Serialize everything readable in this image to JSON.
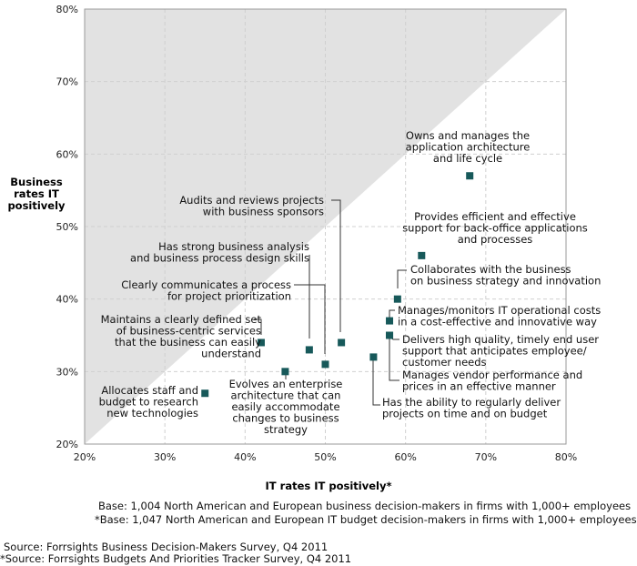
{
  "chart_data": {
    "type": "scatter",
    "title": "",
    "xlabel": "IT rates IT positively*",
    "ylabel": [
      "Business",
      "rates IT",
      "positively"
    ],
    "xlim": [
      20,
      80
    ],
    "ylim": [
      20,
      80
    ],
    "x_ticks": [
      20,
      30,
      40,
      50,
      60,
      70,
      80
    ],
    "y_ticks": [
      20,
      30,
      40,
      50,
      60,
      70,
      80
    ],
    "tick_suffix": "%",
    "grid": true,
    "shaded_region": "upper-left triangle above the diagonal y = x",
    "colors": {
      "marker": "#17595a",
      "shade": "#e2e2e2",
      "grid": "#d0d0d0",
      "leader": "#333333"
    },
    "points": [
      {
        "label": [
          "Owns and manages the",
          "application architecture",
          "and life cycle"
        ],
        "x": 68,
        "y": 57
      },
      {
        "label": [
          "Audits and reviews projects",
          "with business sponsors"
        ],
        "x": 52,
        "y": 34
      },
      {
        "label": [
          "Provides efficient and effective",
          "support for back-office applications",
          "and processes"
        ],
        "x": 62,
        "y": 46
      },
      {
        "label": [
          "Has strong business analysis",
          "and business process design skills"
        ],
        "x": 48,
        "y": 33
      },
      {
        "label": [
          "Collaborates with the business",
          "on business strategy and innovation"
        ],
        "x": 59,
        "y": 40
      },
      {
        "label": [
          "Clearly communicates a process",
          "for project prioritization"
        ],
        "x": 50,
        "y": 31
      },
      {
        "label": [
          "Manages/monitors IT operational costs",
          "in a cost-effective and innovative way"
        ],
        "x": 58,
        "y": 37
      },
      {
        "label": [
          "Maintains a clearly defined set",
          "of business-centric services",
          "that the business can easily",
          "understand"
        ],
        "x": 42,
        "y": 34
      },
      {
        "label": [
          "Delivers high quality, timely end user",
          "support that anticipates employee/",
          "customer needs"
        ],
        "x": 58,
        "y": 35
      },
      {
        "label": [
          "Manages vendor performance and",
          "prices in an effective manner"
        ],
        "x": 58,
        "y": 35
      },
      {
        "label": [
          "Allocates staff and",
          "budget to research",
          "new technologies"
        ],
        "x": 35,
        "y": 27
      },
      {
        "label": [
          "Evolves an enterprise",
          "architecture that can",
          "easily accommodate",
          "changes to business",
          "strategy"
        ],
        "x": 45,
        "y": 30
      },
      {
        "label": [
          "Has the ability to regularly deliver",
          "projects on time and on budget"
        ],
        "x": 56,
        "y": 32
      }
    ]
  },
  "footer": {
    "base1": "Base: 1,004 North American and European business decision-makers in firms with 1,000+ employees",
    "base2": "*Base: 1,047 North American and European IT budget decision-makers in firms with 1,000+ employees",
    "source1": "Source: Forrsights Business Decision-Makers Survey, Q4 2011",
    "source2": "*Source: Forrsights Budgets And Priorities Tracker Survey, Q4 2011"
  }
}
